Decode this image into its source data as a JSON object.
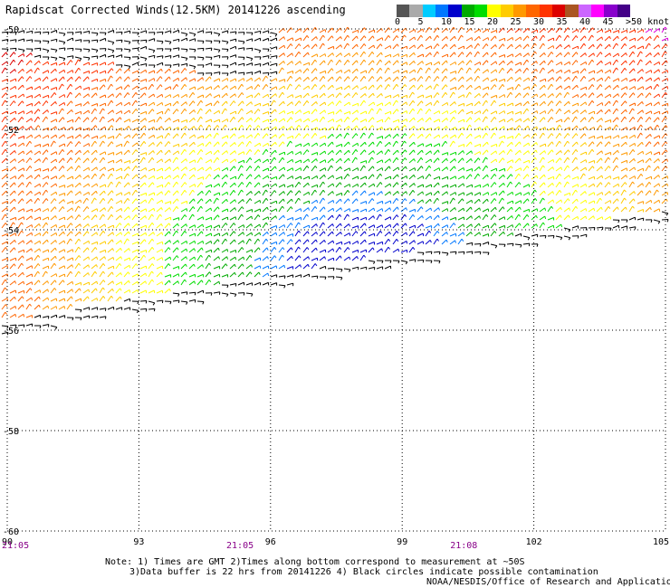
{
  "title": "Rapidscat Corrected Winds(12.5KM) 20141226 ascending",
  "legend": {
    "labels": [
      "0",
      "5",
      "10",
      "15",
      "20",
      "25",
      "30",
      "35",
      "40",
      "45",
      ">50 knots"
    ],
    "colors": [
      "#555555",
      "#aaaaaa",
      "#00ccff",
      "#0077ff",
      "#0000cc",
      "#00aa00",
      "#00dd00",
      "#ffff00",
      "#ffcc00",
      "#ff9900",
      "#ff6600",
      "#ff3300",
      "#dd0000",
      "#aa5522",
      "#cc66ff",
      "#ff00ff",
      "#8800cc",
      "#440088"
    ]
  },
  "map": {
    "lon_range": [
      90,
      105
    ],
    "lat_range": [
      -60,
      -50
    ],
    "lon_ticks": [
      "90",
      "93",
      "96",
      "99",
      "102",
      "105"
    ],
    "lat_ticks": [
      "-50",
      "-52",
      "-54",
      "-56",
      "-58",
      "-60"
    ],
    "grid": "dotted"
  },
  "times": [
    {
      "text": "21:05",
      "lon": 90
    },
    {
      "text": "21:05",
      "lon": 95.2
    },
    {
      "text": "21:08",
      "lon": 100.3
    }
  ],
  "notes": {
    "line1": "Note: 1) Times are GMT 2)Times along bottom correspond to measurement at ~50S",
    "line2": "3)Data buffer is 22 hrs from 20141226 4) Black circles indicate possible contamination",
    "credit": "NOAA/NESDIS/Office of Research and Applications"
  }
}
